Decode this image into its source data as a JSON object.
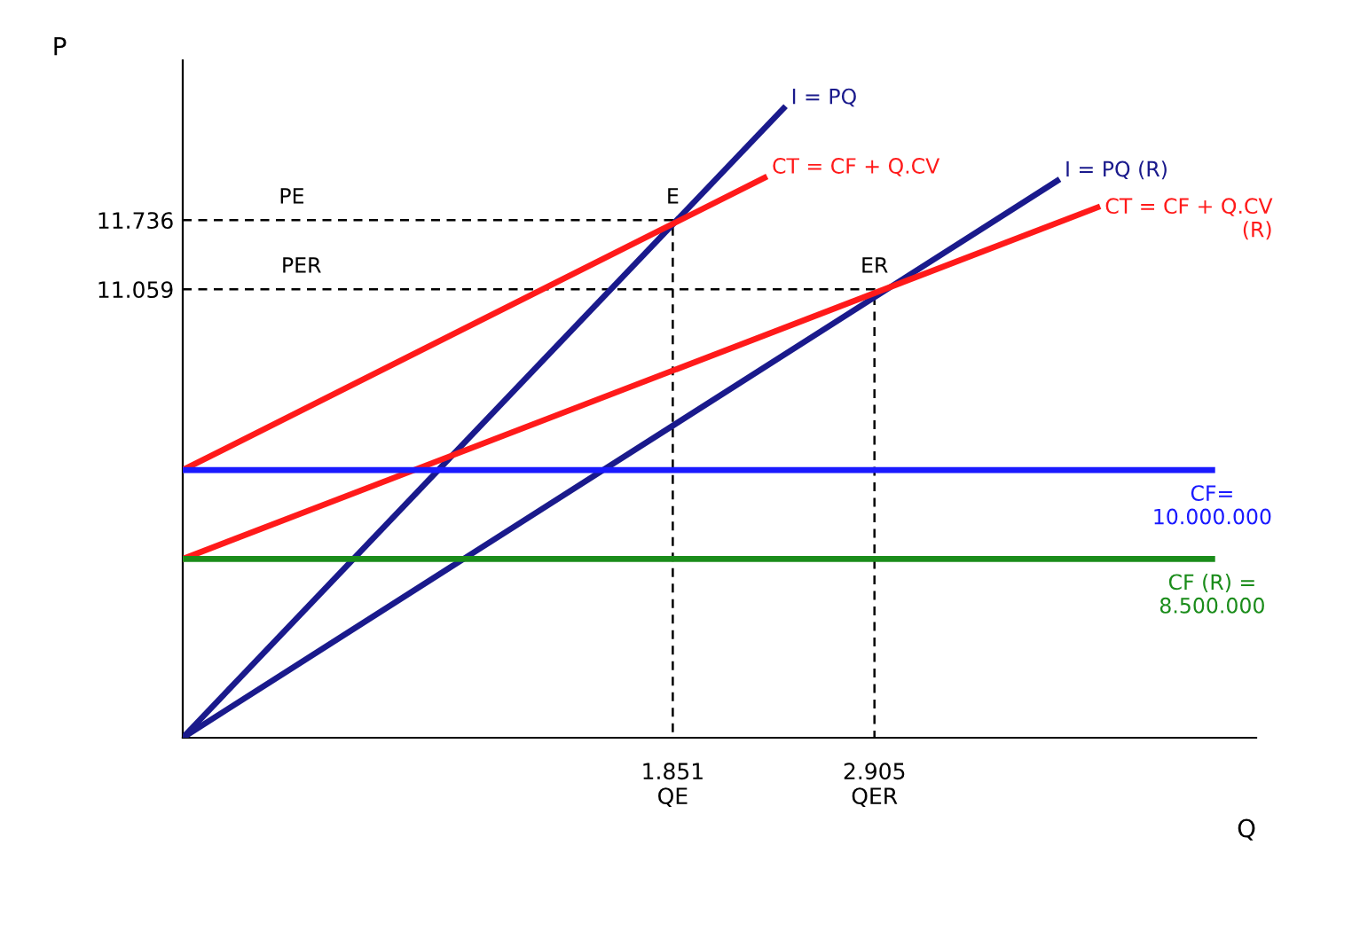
{
  "chart_data": {
    "type": "line",
    "xlabel": "Q",
    "ylabel": "P",
    "xlim": [
      -710,
      4900
    ],
    "ylim": [
      6670,
      13300
    ],
    "xticks": [
      {
        "value": 1851,
        "label": "1.851\nQE"
      },
      {
        "value": 2905,
        "label": "2.905\nQER"
      }
    ],
    "yticks": [
      {
        "value": 11059,
        "label": "11.059"
      },
      {
        "value": 11736,
        "label": "11.736"
      }
    ],
    "grid": false,
    "legend": false,
    "marker": "none",
    "series": [
      {
        "name": "I = PQ",
        "color": "#1a1a8c",
        "x": [
          -710,
          2430
        ],
        "values": [
          6670,
          12830
        ]
      },
      {
        "name": "CT = CF + Q.CV",
        "color": "#ff1a1a",
        "x": [
          -710,
          2330
        ],
        "values": [
          9290,
          12150
        ]
      },
      {
        "name": "I = PQ (R)",
        "color": "#1a1a8c",
        "x": [
          -710,
          3860
        ],
        "values": [
          6670,
          12120
        ]
      },
      {
        "name": "CT = CF + Q.CV\n(R)",
        "color": "#ff1a1a",
        "x": [
          -710,
          4070
        ],
        "values": [
          8420,
          11860
        ]
      },
      {
        "name": "CF=\n10.000.000",
        "color": "#1a1aff",
        "x": [
          -710,
          4670
        ],
        "values": [
          9290,
          9290
        ]
      },
      {
        "name": "CF (R) =\n8.500.000",
        "color": "#1a8c1a",
        "x": [
          -710,
          4670
        ],
        "values": [
          8420,
          8420
        ]
      },
      {
        "color": "#000000",
        "line_style": "dashed",
        "x": [
          -710,
          1851,
          1851
        ],
        "values": [
          11736,
          11736,
          6670
        ]
      },
      {
        "color": "#000000",
        "line_style": "dashed",
        "x": [
          -710,
          2905,
          2905
        ],
        "values": [
          11059,
          11059,
          6670
        ]
      }
    ],
    "annotations": [
      {
        "text": "E",
        "x": 1851,
        "y": 11736
      },
      {
        "text": "ER",
        "x": 2905,
        "y": 11059
      },
      {
        "text": "PE",
        "x": -140,
        "y": 11736
      },
      {
        "text": "PER",
        "x": -90,
        "y": 11059
      }
    ]
  }
}
